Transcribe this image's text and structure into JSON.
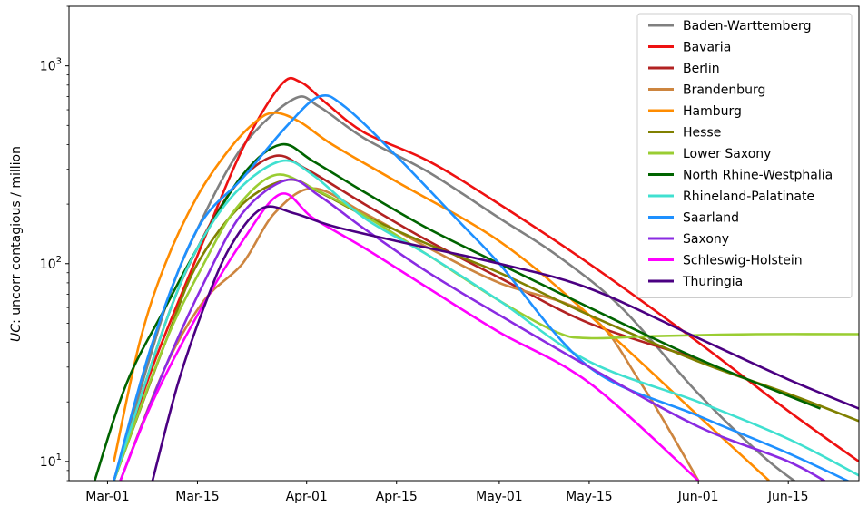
{
  "chart_data": {
    "type": "line",
    "ylabel_italic": "UC",
    "ylabel_rest": ": uncorr contagious / million",
    "xlabel": "",
    "title": "",
    "yscale": "log",
    "ylim": [
      8,
      2000
    ],
    "xlim": [
      "2020-02-24",
      "2020-06-26"
    ],
    "x_ticks": [
      {
        "label": "Mar-01",
        "date": "2020-03-01"
      },
      {
        "label": "Mar-15",
        "date": "2020-03-15"
      },
      {
        "label": "Apr-01",
        "date": "2020-04-01"
      },
      {
        "label": "Apr-15",
        "date": "2020-04-15"
      },
      {
        "label": "May-01",
        "date": "2020-05-01"
      },
      {
        "label": "May-15",
        "date": "2020-05-15"
      },
      {
        "label": "Jun-01",
        "date": "2020-06-01"
      },
      {
        "label": "Jun-15",
        "date": "2020-06-15"
      }
    ],
    "y_ticks": [
      {
        "base": "10",
        "exp": "1",
        "value": 10
      },
      {
        "base": "10",
        "exp": "2",
        "value": 100
      },
      {
        "base": "10",
        "exp": "3",
        "value": 1000
      }
    ],
    "grid": false,
    "legend_position": "top-right",
    "series": [
      {
        "name": "Baden-Warttemberg",
        "color": "#808080",
        "x": [
          "2020-03-02",
          "2020-03-10",
          "2020-03-15",
          "2020-03-22",
          "2020-03-30",
          "2020-04-03",
          "2020-04-10",
          "2020-04-20",
          "2020-05-01",
          "2020-05-10",
          "2020-05-20",
          "2020-06-01",
          "2020-06-12",
          "2020-06-20"
        ],
        "y": [
          8,
          60,
          150,
          390,
          680,
          620,
          430,
          290,
          170,
          110,
          60,
          22,
          10,
          6.5
        ]
      },
      {
        "name": "Bavaria",
        "color": "#ee1111",
        "x": [
          "2020-03-02",
          "2020-03-08",
          "2020-03-15",
          "2020-03-22",
          "2020-03-28",
          "2020-03-31",
          "2020-04-04",
          "2020-04-10",
          "2020-04-20",
          "2020-05-01",
          "2020-05-15",
          "2020-06-01",
          "2020-06-15",
          "2020-06-26"
        ],
        "y": [
          8,
          30,
          110,
          380,
          800,
          830,
          650,
          460,
          330,
          200,
          100,
          40,
          18,
          10
        ]
      },
      {
        "name": "Berlin",
        "color": "#b22222",
        "x": [
          "2020-03-02",
          "2020-03-10",
          "2020-03-15",
          "2020-03-21",
          "2020-03-27",
          "2020-04-01",
          "2020-04-10",
          "2020-04-20",
          "2020-05-01",
          "2020-05-15",
          "2020-06-01"
        ],
        "y": [
          8,
          50,
          120,
          250,
          350,
          300,
          200,
          130,
          85,
          50,
          33
        ]
      },
      {
        "name": "Brandenburg",
        "color": "#cd853f",
        "x": [
          "2020-03-03",
          "2020-03-10",
          "2020-03-16",
          "2020-03-22",
          "2020-03-27",
          "2020-04-02",
          "2020-04-10",
          "2020-04-20",
          "2020-05-01",
          "2020-05-15",
          "2020-05-23",
          "2020-06-01"
        ],
        "y": [
          8,
          30,
          65,
          100,
          180,
          240,
          180,
          120,
          80,
          55,
          25,
          8
        ]
      },
      {
        "name": "Hamburg",
        "color": "#ff8c00",
        "x": [
          "2020-03-02",
          "2020-03-06",
          "2020-03-10",
          "2020-03-15",
          "2020-03-20",
          "2020-03-24",
          "2020-03-27",
          "2020-03-31",
          "2020-04-05",
          "2020-04-15",
          "2020-05-01",
          "2020-05-15",
          "2020-06-01",
          "2020-06-12"
        ],
        "y": [
          10,
          40,
          100,
          220,
          380,
          520,
          580,
          520,
          400,
          260,
          130,
          55,
          17,
          8
        ]
      },
      {
        "name": "Hesse",
        "color": "#808000",
        "x": [
          "2020-03-02",
          "2020-03-10",
          "2020-03-15",
          "2020-03-22",
          "2020-03-29",
          "2020-04-03",
          "2020-04-10",
          "2020-04-20",
          "2020-05-01",
          "2020-05-15",
          "2020-06-01",
          "2020-06-15",
          "2020-06-26"
        ],
        "y": [
          8,
          40,
          100,
          200,
          265,
          230,
          175,
          125,
          90,
          55,
          32,
          22,
          16
        ]
      },
      {
        "name": "Lower Saxony",
        "color": "#9acd32",
        "x": [
          "2020-03-02",
          "2020-03-10",
          "2020-03-16",
          "2020-03-21",
          "2020-03-27",
          "2020-04-02",
          "2020-04-10",
          "2020-04-20",
          "2020-05-01",
          "2020-05-10",
          "2020-05-15",
          "2020-05-25",
          "2020-06-10",
          "2020-06-26"
        ],
        "y": [
          8,
          40,
          100,
          190,
          280,
          240,
          175,
          110,
          65,
          45,
          42,
          43,
          44,
          44
        ]
      },
      {
        "name": "North Rhine-Westphalia",
        "color": "#006400",
        "x": [
          "2020-02-28",
          "2020-03-04",
          "2020-03-10",
          "2020-03-15",
          "2020-03-22",
          "2020-03-28",
          "2020-04-02",
          "2020-04-10",
          "2020-04-20",
          "2020-05-01",
          "2020-05-15",
          "2020-06-01",
          "2020-06-20"
        ],
        "y": [
          8,
          25,
          60,
          120,
          280,
          400,
          330,
          230,
          150,
          100,
          60,
          33,
          18.5
        ]
      },
      {
        "name": "Rhineland-Palatinate",
        "color": "#40e0d0",
        "x": [
          "2020-03-02",
          "2020-03-10",
          "2020-03-15",
          "2020-03-21",
          "2020-03-28",
          "2020-04-02",
          "2020-04-10",
          "2020-04-20",
          "2020-05-01",
          "2020-05-15",
          "2020-06-01",
          "2020-06-15",
          "2020-06-26"
        ],
        "y": [
          8,
          50,
          120,
          230,
          330,
          280,
          170,
          110,
          65,
          32,
          20,
          13,
          8.5
        ]
      },
      {
        "name": "Saarland",
        "color": "#1e90ff",
        "x": [
          "2020-03-02",
          "2020-03-08",
          "2020-03-15",
          "2020-03-22",
          "2020-03-29",
          "2020-04-03",
          "2020-04-07",
          "2020-04-15",
          "2020-04-25",
          "2020-05-01",
          "2020-05-15",
          "2020-06-01",
          "2020-06-15",
          "2020-06-26"
        ],
        "y": [
          8,
          40,
          150,
          270,
          500,
          700,
          620,
          350,
          160,
          100,
          30,
          17,
          11,
          7.5
        ]
      },
      {
        "name": "Saxony",
        "color": "#8a2be2",
        "x": [
          "2020-03-03",
          "2020-03-10",
          "2020-03-16",
          "2020-03-22",
          "2020-03-29",
          "2020-04-03",
          "2020-04-10",
          "2020-04-20",
          "2020-05-01",
          "2020-05-15",
          "2020-06-01",
          "2020-06-15",
          "2020-06-22"
        ],
        "y": [
          8,
          30,
          80,
          180,
          265,
          220,
          150,
          90,
          55,
          30,
          15,
          10,
          7.5
        ]
      },
      {
        "name": "Schleswig-Holstein",
        "color": "#ff00ff",
        "x": [
          "2020-03-03",
          "2020-03-08",
          "2020-03-15",
          "2020-03-22",
          "2020-03-28",
          "2020-04-02",
          "2020-04-10",
          "2020-04-20",
          "2020-05-01",
          "2020-05-15",
          "2020-06-01"
        ],
        "y": [
          8,
          20,
          55,
          130,
          225,
          170,
          120,
          75,
          45,
          25,
          8
        ]
      },
      {
        "name": "Thuringia",
        "color": "#4b0082",
        "x": [
          "2020-03-08",
          "2020-03-12",
          "2020-03-16",
          "2020-03-20",
          "2020-03-25",
          "2020-03-30",
          "2020-04-05",
          "2020-04-15",
          "2020-05-01",
          "2020-05-15",
          "2020-06-01",
          "2020-06-15",
          "2020-06-26"
        ],
        "y": [
          8,
          25,
          60,
          120,
          190,
          180,
          155,
          130,
          100,
          75,
          42,
          26,
          18.5
        ]
      }
    ]
  }
}
